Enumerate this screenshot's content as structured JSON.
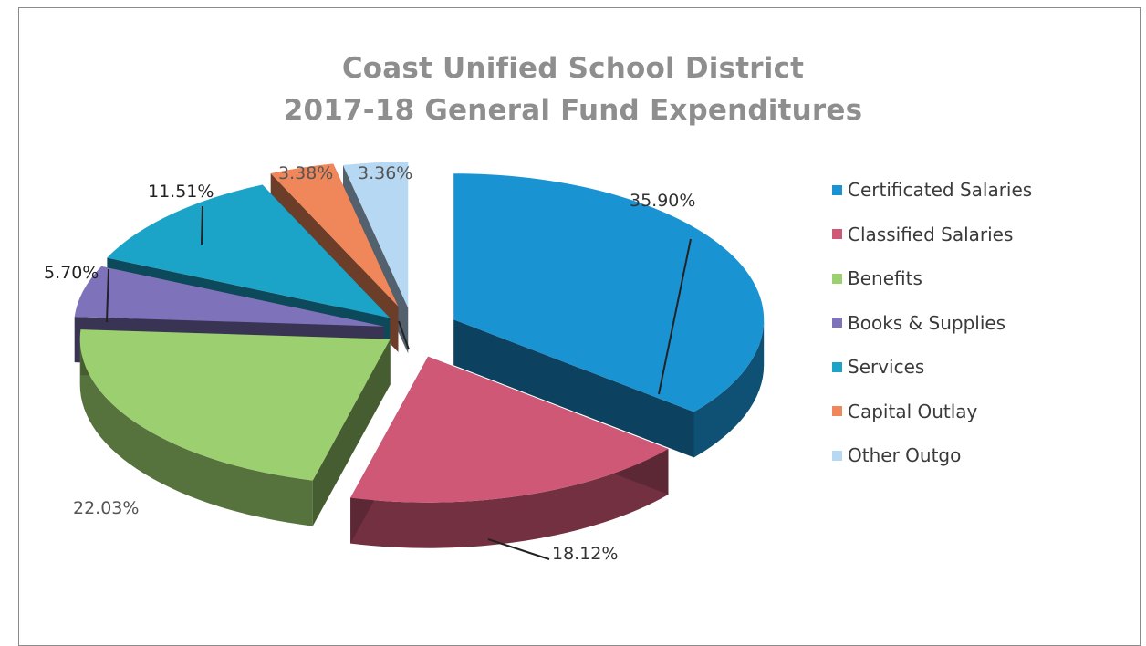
{
  "title": {
    "line1": "Coast Unified School District",
    "line2": "2017-18 General Fund Expenditures"
  },
  "chart_data": {
    "type": "pie",
    "style": "3d-exploded",
    "title": "Coast Unified School District 2017-18 General Fund Expenditures",
    "legend_position": "right",
    "slices": [
      {
        "name": "Certificated Salaries",
        "value": 35.9,
        "label": "35.90%",
        "color": "#1a93d3"
      },
      {
        "name": "Classified Salaries",
        "value": 18.12,
        "label": "18.12%",
        "color": "#cf5877"
      },
      {
        "name": "Benefits",
        "value": 22.03,
        "label": "22.03%",
        "color": "#9ccf6f"
      },
      {
        "name": "Books & Supplies",
        "value": 5.7,
        "label": "5.70%",
        "color": "#7e72bb"
      },
      {
        "name": "Services",
        "value": 11.51,
        "label": "11.51%",
        "color": "#1ba3c8"
      },
      {
        "name": "Capital Outlay",
        "value": 3.38,
        "label": "3.38%",
        "color": "#ef875a"
      },
      {
        "name": "Other Outgo",
        "value": 3.36,
        "label": "3.36%",
        "color": "#b7d8f2"
      }
    ]
  }
}
